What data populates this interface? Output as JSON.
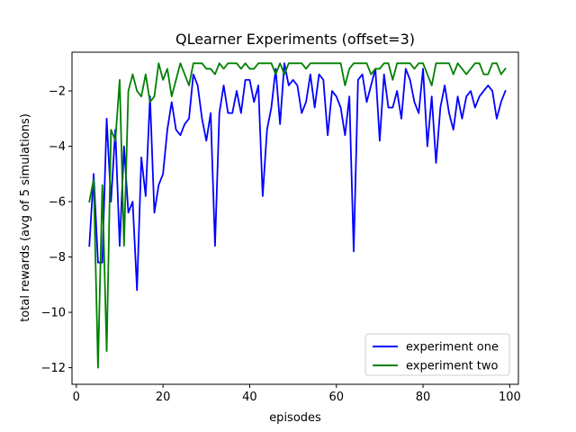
{
  "chart_data": {
    "type": "line",
    "title": "QLearner Experiments (offset=3)",
    "xlabel": "episodes",
    "ylabel": "total rewards (avg of 5 simulations)",
    "xlim": [
      -1,
      102
    ],
    "ylim": [
      -12.6,
      -0.6
    ],
    "xticks": [
      0,
      20,
      40,
      60,
      80,
      100
    ],
    "yticks": [
      -12,
      -10,
      -8,
      -6,
      -4,
      -2
    ],
    "grid": false,
    "legend_position": "lower right",
    "x": [
      3,
      4,
      5,
      6,
      7,
      8,
      9,
      10,
      11,
      12,
      13,
      14,
      15,
      16,
      17,
      18,
      19,
      20,
      21,
      22,
      23,
      24,
      25,
      26,
      27,
      28,
      29,
      30,
      31,
      32,
      33,
      34,
      35,
      36,
      37,
      38,
      39,
      40,
      41,
      42,
      43,
      44,
      45,
      46,
      47,
      48,
      49,
      50,
      51,
      52,
      53,
      54,
      55,
      56,
      57,
      58,
      59,
      60,
      61,
      62,
      63,
      64,
      65,
      66,
      67,
      68,
      69,
      70,
      71,
      72,
      73,
      74,
      75,
      76,
      77,
      78,
      79,
      80,
      81,
      82,
      83,
      84,
      85,
      86,
      87,
      88,
      89,
      90,
      91,
      92,
      93,
      94,
      95,
      96,
      97,
      98,
      99
    ],
    "series": [
      {
        "name": "experiment one",
        "color": "#0000ff",
        "values": [
          -7.6,
          -5.0,
          -8.2,
          -8.2,
          -3.0,
          -6.0,
          -3.4,
          -7.6,
          -4.0,
          -6.4,
          -6.0,
          -9.2,
          -4.4,
          -5.8,
          -2.2,
          -6.4,
          -5.4,
          -5.0,
          -3.4,
          -2.4,
          -3.4,
          -3.6,
          -3.2,
          -3.0,
          -1.4,
          -1.8,
          -3.0,
          -3.8,
          -2.8,
          -7.6,
          -2.8,
          -1.8,
          -2.8,
          -2.8,
          -2.0,
          -2.8,
          -1.6,
          -1.6,
          -2.4,
          -1.8,
          -5.8,
          -3.4,
          -2.6,
          -1.2,
          -3.2,
          -1.0,
          -1.8,
          -1.6,
          -1.8,
          -2.8,
          -2.4,
          -1.4,
          -2.6,
          -1.4,
          -1.6,
          -3.6,
          -2.0,
          -2.2,
          -2.6,
          -3.6,
          -2.2,
          -7.8,
          -1.6,
          -1.4,
          -2.4,
          -1.8,
          -1.2,
          -3.8,
          -1.4,
          -2.6,
          -2.6,
          -2.0,
          -3.0,
          -1.2,
          -1.6,
          -2.4,
          -2.8,
          -1.2,
          -4.0,
          -2.2,
          -4.6,
          -2.6,
          -1.8,
          -2.8,
          -3.4,
          -2.2,
          -3.0,
          -2.2,
          -2.0,
          -2.6,
          -2.2,
          -2.0,
          -1.8,
          -2.0,
          -3.0,
          -2.4,
          -2.0
        ]
      },
      {
        "name": "experiment two",
        "color": "#008000",
        "values": [
          -6.0,
          -5.2,
          -12.0,
          -5.4,
          -11.4,
          -3.4,
          -3.8,
          -1.6,
          -7.6,
          -2.0,
          -1.4,
          -2.0,
          -2.2,
          -1.4,
          -2.4,
          -2.2,
          -1.0,
          -1.6,
          -1.2,
          -2.2,
          -1.6,
          -1.0,
          -1.4,
          -1.8,
          -1.0,
          -1.0,
          -1.0,
          -1.2,
          -1.2,
          -1.4,
          -1.0,
          -1.2,
          -1.0,
          -1.0,
          -1.0,
          -1.2,
          -1.0,
          -1.2,
          -1.2,
          -1.0,
          -1.0,
          -1.0,
          -1.0,
          -1.4,
          -1.0,
          -1.4,
          -1.0,
          -1.0,
          -1.0,
          -1.0,
          -1.2,
          -1.0,
          -1.0,
          -1.0,
          -1.0,
          -1.0,
          -1.0,
          -1.0,
          -1.0,
          -1.8,
          -1.2,
          -1.0,
          -1.0,
          -1.0,
          -1.0,
          -1.4,
          -1.2,
          -1.2,
          -1.0,
          -1.0,
          -1.6,
          -1.0,
          -1.0,
          -1.0,
          -1.0,
          -1.2,
          -1.0,
          -1.0,
          -1.4,
          -1.8,
          -1.0,
          -1.0,
          -1.0,
          -1.0,
          -1.4,
          -1.0,
          -1.2,
          -1.4,
          -1.2,
          -1.0,
          -1.0,
          -1.4,
          -1.4,
          -1.0,
          -1.0,
          -1.4,
          -1.2
        ]
      }
    ]
  }
}
